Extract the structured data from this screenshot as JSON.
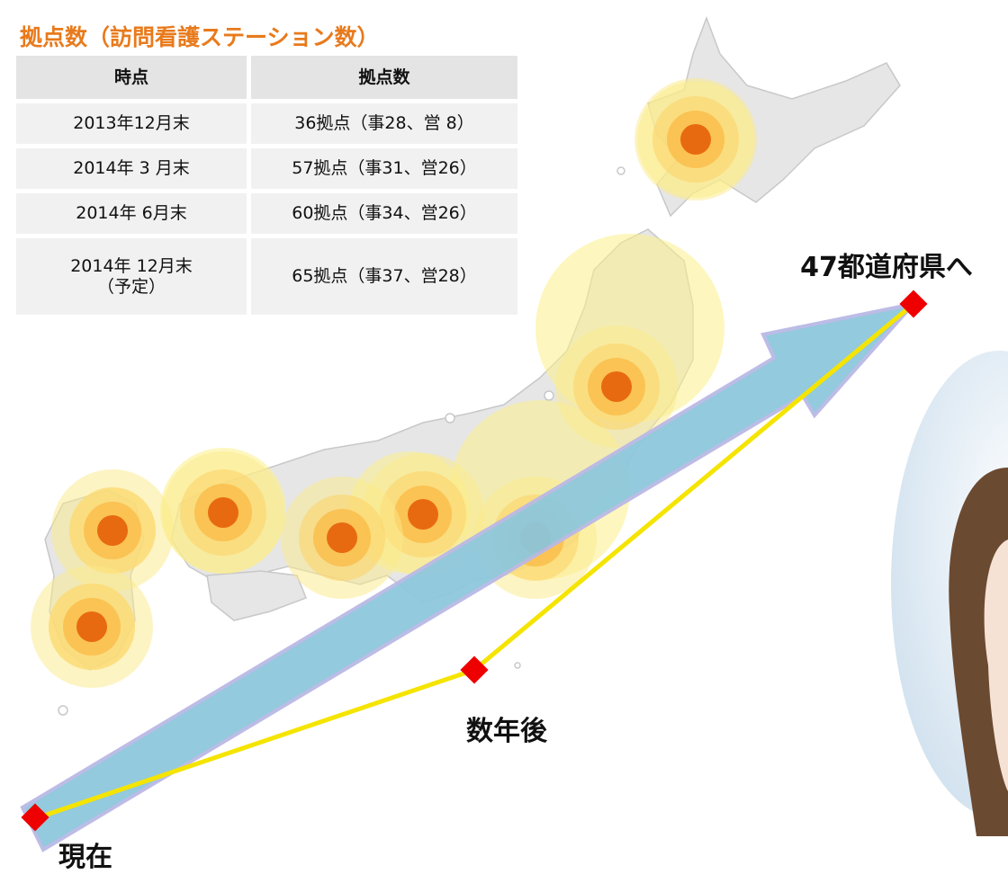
{
  "title": "拠点数（訪問看護ステーション数）",
  "table": {
    "header": [
      "時点",
      "拠点数"
    ],
    "rows": [
      [
        "2013年12月末",
        "36拠点（事28、営 8）"
      ],
      [
        "2014年 3 月末",
        "57拠点（事31、営26）"
      ],
      [
        "2014年 6月末",
        "60拠点（事34、営26）"
      ],
      [
        "2014年 12月末\n（予定）",
        "65拠点（事37、営28）"
      ]
    ]
  },
  "labels": {
    "now": "現在",
    "later": "数年後",
    "goal": "47都道府県へ"
  }
}
